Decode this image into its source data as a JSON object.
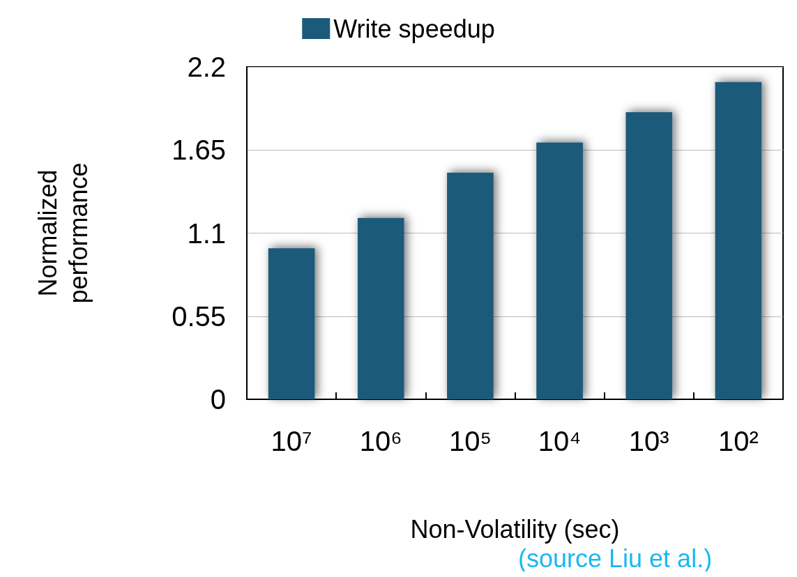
{
  "chart_data": {
    "type": "bar",
    "xlabel": "Non-Volatility (sec)",
    "ylabel": "Normalized\nperformance",
    "categories": [
      "10⁷",
      "10⁶",
      "10⁵",
      "10⁴",
      "10³",
      "10²"
    ],
    "series": [
      {
        "name": "Write speedup",
        "color": "#1b5a7a",
        "values": [
          1.0,
          1.2,
          1.5,
          1.7,
          1.9,
          2.1
        ]
      }
    ],
    "ylim": [
      0,
      2.2
    ],
    "yticks": [
      0,
      0.55,
      1.1,
      1.65,
      2.2
    ],
    "grid": "y",
    "legend": "top",
    "annotations": [
      "(source Liu et al.)"
    ]
  }
}
